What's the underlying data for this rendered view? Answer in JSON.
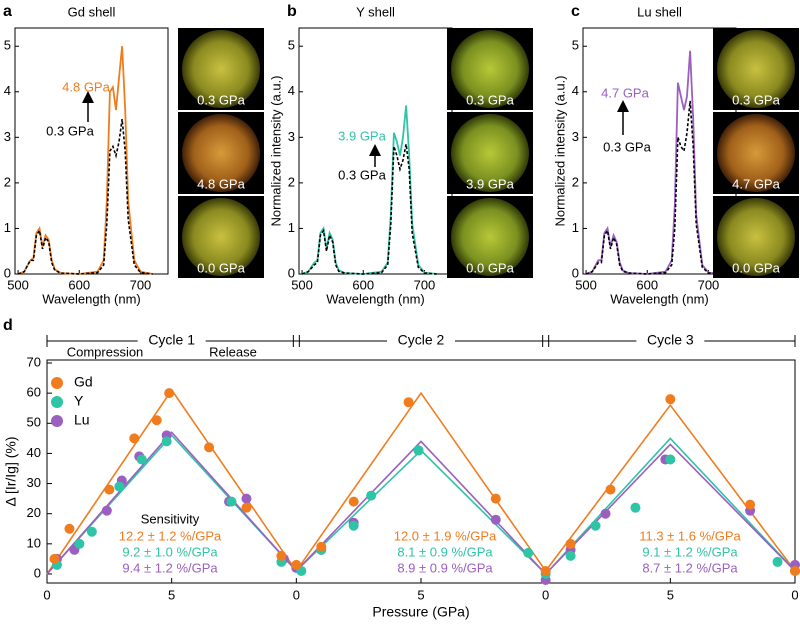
{
  "chart_data": [
    {
      "type": "line",
      "panel": "a",
      "title": "Gd shell",
      "xlabel": "Wavelength (nm)",
      "ylabel": "Normalized intensity (a.u.)",
      "x": [
        500,
        510,
        520,
        525,
        530,
        535,
        540,
        545,
        550,
        555,
        560,
        570,
        600,
        630,
        640,
        645,
        650,
        655,
        660,
        665,
        670,
        675,
        680,
        690,
        700,
        720
      ],
      "series": [
        {
          "name": "4.8 GPa",
          "color": "#f07c1e",
          "dash": false,
          "values": [
            0,
            0.05,
            0.3,
            0.35,
            0.9,
            1.0,
            0.6,
            0.85,
            0.75,
            0.3,
            0.1,
            0.02,
            0,
            0.05,
            0.3,
            1.6,
            4.0,
            4.1,
            3.6,
            4.3,
            5.0,
            3.6,
            1.6,
            0.3,
            0.05,
            0
          ]
        },
        {
          "name": "0.3 GPa",
          "color": "#000000",
          "dash": true,
          "values": [
            0,
            0.05,
            0.3,
            0.3,
            0.85,
            0.95,
            0.55,
            0.8,
            0.7,
            0.25,
            0.08,
            0.02,
            0,
            0.03,
            0.2,
            1.1,
            2.7,
            2.8,
            2.6,
            2.9,
            3.4,
            2.7,
            1.2,
            0.2,
            0.03,
            0
          ]
        }
      ],
      "xlim": [
        495,
        745
      ],
      "ylim": [
        0,
        5.4
      ],
      "xticks": [
        500,
        600,
        700
      ],
      "yticks": [
        0,
        1,
        2,
        3,
        4,
        5
      ],
      "images": [
        "0.3 GPa",
        "4.8 GPa",
        "0.0 GPa"
      ]
    },
    {
      "type": "line",
      "panel": "b",
      "title": "Y shell",
      "xlabel": "Wavelength (nm)",
      "ylabel": "Normalized intensity (a.u.)",
      "x": [
        500,
        510,
        520,
        525,
        530,
        535,
        540,
        545,
        550,
        555,
        560,
        570,
        600,
        630,
        640,
        645,
        650,
        655,
        660,
        665,
        670,
        675,
        680,
        690,
        700,
        720
      ],
      "series": [
        {
          "name": "3.9 GPa",
          "color": "#2ec4a6",
          "dash": false,
          "values": [
            0,
            0.05,
            0.25,
            0.3,
            0.9,
            1.0,
            0.55,
            0.9,
            0.75,
            0.25,
            0.08,
            0.02,
            0,
            0.05,
            0.25,
            1.3,
            3.1,
            2.9,
            2.6,
            3.0,
            3.7,
            2.6,
            1.1,
            0.2,
            0.03,
            0
          ]
        },
        {
          "name": "0.3 GPa",
          "color": "#000000",
          "dash": true,
          "values": [
            0,
            0.05,
            0.2,
            0.25,
            0.85,
            0.95,
            0.5,
            0.85,
            0.7,
            0.2,
            0.06,
            0.02,
            0,
            0.03,
            0.2,
            1.1,
            2.8,
            2.6,
            2.3,
            2.5,
            2.85,
            2.3,
            0.9,
            0.15,
            0.02,
            0
          ]
        }
      ],
      "xlim": [
        495,
        745
      ],
      "ylim": [
        0,
        5.4
      ],
      "xticks": [
        500,
        600,
        700
      ],
      "yticks": [
        0,
        1,
        2,
        3,
        4,
        5
      ],
      "images": [
        "0.3 GPa",
        "3.9 GPa",
        "0.0 GPa"
      ]
    },
    {
      "type": "line",
      "panel": "c",
      "title": "Lu shell",
      "xlabel": "Wavelength (nm)",
      "ylabel": "Normalized intensity (a.u.)",
      "x": [
        500,
        510,
        520,
        525,
        530,
        535,
        540,
        545,
        550,
        555,
        560,
        570,
        600,
        630,
        640,
        645,
        650,
        655,
        660,
        665,
        670,
        675,
        680,
        690,
        700,
        720
      ],
      "series": [
        {
          "name": "4.7 GPa",
          "color": "#9b5fc0",
          "dash": false,
          "values": [
            0,
            0.05,
            0.3,
            0.3,
            0.9,
            1.0,
            0.6,
            0.85,
            0.7,
            0.25,
            0.08,
            0.02,
            0,
            0.05,
            0.3,
            1.5,
            4.2,
            3.9,
            3.6,
            3.9,
            4.9,
            3.4,
            1.3,
            0.2,
            0.03,
            0
          ]
        },
        {
          "name": "0.3 GPa",
          "color": "#000000",
          "dash": true,
          "values": [
            0,
            0.05,
            0.25,
            0.25,
            0.85,
            0.95,
            0.55,
            0.8,
            0.65,
            0.2,
            0.06,
            0.02,
            0,
            0.03,
            0.2,
            1.0,
            3.0,
            2.8,
            2.7,
            3.1,
            3.8,
            2.8,
            1.1,
            0.15,
            0.02,
            0
          ]
        }
      ],
      "xlim": [
        495,
        745
      ],
      "ylim": [
        0,
        5.4
      ],
      "xticks": [
        500,
        600,
        700
      ],
      "yticks": [
        0,
        1,
        2,
        3,
        4,
        5
      ],
      "images": [
        "0.3 GPa",
        "4.7 GPa",
        "0.0 GPa"
      ]
    },
    {
      "type": "scatter",
      "panel": "d",
      "xlabel": "Pressure (GPa)",
      "ylabel": "Δ [Ir/Ig] (%)",
      "xlim": [
        0,
        30
      ],
      "ylim": [
        -3,
        71
      ],
      "xticks": [
        0,
        5,
        {
          "value": 10,
          "label": "0"
        },
        {
          "value": 15,
          "label": "5"
        },
        {
          "value": 20,
          "label": "0"
        },
        {
          "value": 25,
          "label": "5"
        },
        {
          "value": 30,
          "label": "0"
        }
      ],
      "yticks": [
        0,
        10,
        20,
        30,
        40,
        50,
        60,
        70
      ],
      "legend": "upper left",
      "cycles": [
        {
          "label": "Cycle 1",
          "range": [
            0,
            10
          ]
        },
        {
          "label": "Cycle 2",
          "range": [
            10,
            20
          ]
        },
        {
          "label": "Cycle 3",
          "range": [
            20,
            30
          ]
        }
      ],
      "phases": [
        "Compression",
        "Release"
      ],
      "sensitivity_title": "Sensitivity",
      "series": [
        {
          "name": "Gd",
          "color": "#f07c1e",
          "x": [
            0.3,
            0.9,
            2.5,
            3.5,
            4.4,
            4.9,
            6.5,
            8.0,
            9.4,
            10.0,
            11.0,
            12.3,
            14.5,
            18.0,
            20.0,
            21.0,
            22.6,
            25.0,
            28.2,
            30.0
          ],
          "values": [
            5,
            15,
            28,
            45,
            51,
            60,
            42,
            22,
            6,
            3,
            9,
            24,
            57,
            25,
            1,
            10,
            28,
            58,
            23,
            1
          ],
          "fit_x": [
            0,
            5,
            10,
            15,
            20,
            25,
            30
          ],
          "fit_values": [
            0,
            61,
            1,
            60,
            1,
            56,
            1
          ],
          "sensitivity": [
            "12.2 ± 1.2 %/GPa",
            "12.0 ± 1.9 %/GPa",
            "11.3 ± 1.6 %/GPa"
          ]
        },
        {
          "name": "Y",
          "color": "#2ec4a6",
          "x": [
            0.4,
            1.3,
            1.8,
            2.9,
            3.8,
            4.8,
            7.4,
            9.4,
            10.2,
            11.0,
            12.3,
            13.0,
            14.9,
            19.3,
            20.0,
            21.0,
            22.0,
            23.6,
            25.0,
            29.3,
            30.0
          ],
          "values": [
            3,
            10,
            14,
            29,
            38,
            44,
            24,
            4,
            1,
            8,
            16,
            26,
            41,
            7,
            0,
            6,
            16,
            22,
            38,
            4,
            1
          ],
          "fit_x": [
            0,
            5,
            10,
            15,
            20,
            25,
            30
          ],
          "fit_values": [
            0,
            46,
            1,
            41,
            0,
            45,
            1
          ],
          "sensitivity": [
            "9.2 ± 1.0 %/GPa",
            "8.1 ± 0.9 %/GPa",
            "9.1 ± 1.2 %/GPa"
          ]
        },
        {
          "name": "Lu",
          "color": "#9b5fc0",
          "x": [
            0.4,
            1.1,
            2.4,
            3.0,
            3.7,
            4.8,
            7.3,
            8.0,
            9.5,
            10.0,
            11.0,
            12.3,
            14.9,
            18.0,
            20.0,
            21.0,
            22.4,
            24.8,
            28.2,
            30.0
          ],
          "values": [
            5,
            8,
            21,
            31,
            39,
            46,
            24,
            25,
            5,
            2,
            8,
            17,
            41,
            18,
            -2,
            8,
            20,
            38,
            21,
            3
          ],
          "fit_x": [
            0,
            5,
            10,
            15,
            20,
            25,
            30
          ],
          "fit_values": [
            0,
            47,
            1,
            44,
            0,
            43,
            1
          ],
          "sensitivity": [
            "9.4 ± 1.2 %/GPa",
            "8.9 ± 0.9 %/GPa",
            "8.7 ± 1.2 %/GPa"
          ]
        }
      ]
    }
  ]
}
